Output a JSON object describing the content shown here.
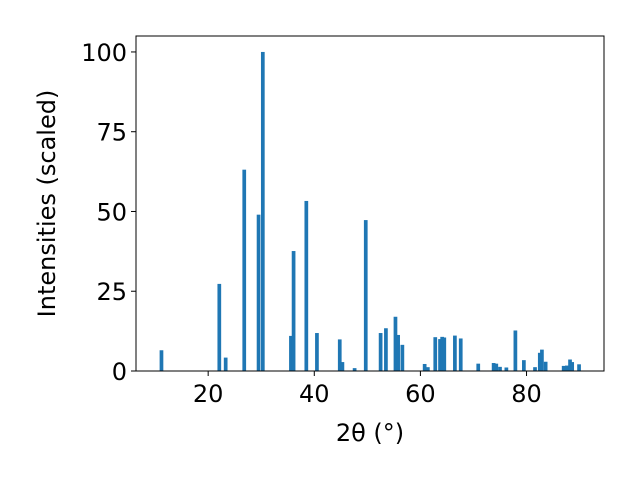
{
  "chart_data": {
    "type": "bar",
    "xlabel": "2θ (°)",
    "ylabel": "Intensities (scaled)",
    "xlim": [
      6.4,
      94.6
    ],
    "ylim": [
      0,
      105
    ],
    "xticks": [
      20,
      40,
      60,
      80
    ],
    "yticks": [
      0,
      25,
      50,
      75,
      100
    ],
    "grid": false,
    "bar_color": "#1f77b4",
    "bar_width": 0.7,
    "x": [
      11.2,
      22.1,
      23.3,
      26.8,
      29.5,
      30.3,
      35.6,
      36.1,
      38.5,
      40.5,
      44.8,
      45.3,
      47.6,
      49.7,
      52.5,
      53.5,
      55.3,
      55.8,
      56.6,
      60.8,
      61.4,
      62.8,
      63.7,
      64.1,
      64.5,
      66.5,
      67.6,
      70.9,
      73.8,
      74.3,
      75.0,
      76.2,
      77.9,
      79.5,
      81.6,
      82.5,
      82.9,
      83.6,
      87.0,
      87.6,
      88.2,
      88.6,
      89.9
    ],
    "values": [
      6.5,
      27.3,
      4.2,
      63.1,
      49.0,
      100.0,
      11.0,
      37.6,
      53.3,
      11.9,
      9.9,
      2.8,
      0.9,
      47.3,
      11.9,
      13.4,
      17.0,
      11.3,
      8.2,
      2.2,
      1.2,
      10.6,
      10.0,
      10.7,
      10.5,
      11.1,
      10.2,
      2.3,
      2.5,
      2.3,
      1.3,
      1.1,
      12.7,
      3.4,
      1.2,
      5.7,
      6.7,
      2.9,
      1.6,
      1.7,
      3.6,
      2.8,
      2.1
    ]
  }
}
